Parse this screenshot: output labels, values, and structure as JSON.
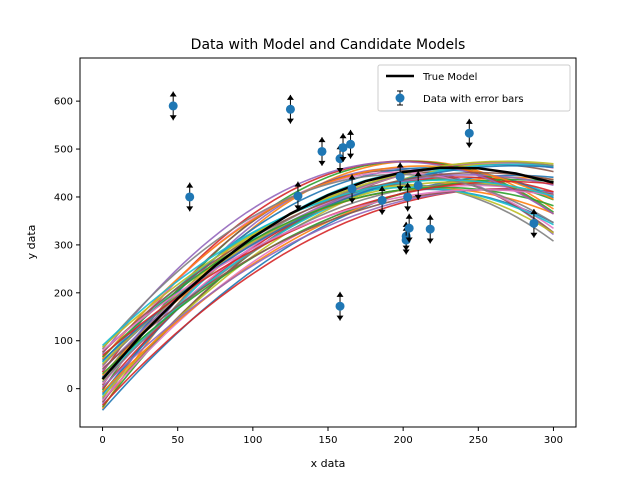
{
  "chart_data": {
    "type": "scatter",
    "title": "Data with Model and Candidate Models",
    "xlabel": "x data",
    "ylabel": "y data",
    "xlim": [
      -15,
      315
    ],
    "ylim": [
      -80,
      690
    ],
    "xticks": [
      0,
      50,
      100,
      150,
      200,
      250,
      300
    ],
    "yticks": [
      0,
      100,
      200,
      300,
      400,
      500,
      600
    ],
    "grid": false,
    "legend": {
      "placement": "top-right",
      "entries": [
        "True Model",
        "Data with error bars"
      ]
    },
    "true_model": {
      "name": "True Model",
      "color": "#000000",
      "x": [
        0,
        25,
        50,
        75,
        100,
        125,
        150,
        175,
        200,
        225,
        250,
        275,
        300
      ],
      "y": [
        20,
        109,
        188,
        257,
        316,
        365,
        404,
        433,
        452,
        461,
        460,
        449,
        430
      ]
    },
    "candidate_models": {
      "count": 40,
      "colors": [
        "#1f77b4",
        "#ff7f0e",
        "#2ca02c",
        "#d62728",
        "#9467bd",
        "#8c564b",
        "#e377c2",
        "#7f7f7f",
        "#bcbd22",
        "#17becf"
      ],
      "x": [
        0,
        25,
        50,
        75,
        100,
        125,
        150,
        175,
        200,
        225,
        250,
        275,
        300
      ],
      "y_low_intercept": -45,
      "y_high_intercept": 90
    },
    "data_series": {
      "name": "Data with error bars",
      "color": "#1f77b4",
      "points": [
        {
          "x": 47,
          "y": 590
        },
        {
          "x": 58,
          "y": 400
        },
        {
          "x": 125,
          "y": 583
        },
        {
          "x": 130,
          "y": 402
        },
        {
          "x": 146,
          "y": 495
        },
        {
          "x": 158,
          "y": 480
        },
        {
          "x": 158,
          "y": 172
        },
        {
          "x": 160,
          "y": 503
        },
        {
          "x": 165,
          "y": 510
        },
        {
          "x": 166,
          "y": 417
        },
        {
          "x": 186,
          "y": 393
        },
        {
          "x": 198,
          "y": 442
        },
        {
          "x": 202,
          "y": 318
        },
        {
          "x": 202,
          "y": 310
        },
        {
          "x": 203,
          "y": 400
        },
        {
          "x": 204,
          "y": 335
        },
        {
          "x": 210,
          "y": 424
        },
        {
          "x": 218,
          "y": 333
        },
        {
          "x": 244,
          "y": 533
        },
        {
          "x": 287,
          "y": 345
        }
      ],
      "error_bar": 30
    }
  }
}
